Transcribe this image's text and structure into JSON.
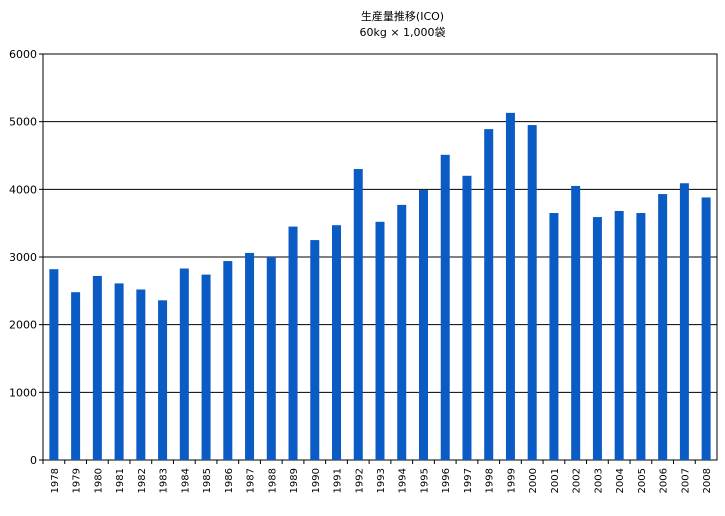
{
  "chart_data": {
    "type": "bar",
    "title": "生産量推移(ICO)",
    "subtitle": "60kg × 1,000袋",
    "xlabel": "",
    "ylabel": "",
    "ylim": [
      0,
      6000
    ],
    "yticks": [
      "0",
      "1000",
      "2000",
      "3000",
      "4000",
      "5000",
      "6000"
    ],
    "grid": true,
    "legend": "none",
    "bar_color": "#0a5cc4",
    "categories": [
      "1978",
      "1979",
      "1980",
      "1981",
      "1982",
      "1983",
      "1984",
      "1985",
      "1986",
      "1987",
      "1988",
      "1989",
      "1990",
      "1991",
      "1992",
      "1993",
      "1994",
      "1995",
      "1996",
      "1997",
      "1998",
      "1999",
      "2000",
      "2001",
      "2002",
      "2003",
      "2004",
      "2005",
      "2006",
      "2007",
      "2008"
    ],
    "values": [
      2820,
      2480,
      2720,
      2610,
      2520,
      2360,
      2830,
      2740,
      2940,
      3060,
      3000,
      3450,
      3250,
      3470,
      4300,
      3520,
      3770,
      3990,
      4510,
      4200,
      4890,
      5130,
      4950,
      3650,
      4050,
      3590,
      3680,
      3650,
      3930,
      4090,
      3880
    ]
  }
}
